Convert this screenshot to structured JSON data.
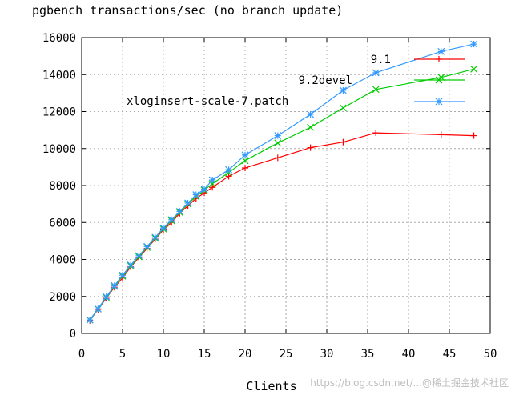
{
  "chart_data": {
    "type": "line",
    "title": "pgbench transactions/sec (no branch update)",
    "xlabel": "Clients",
    "ylabel": "",
    "xlim": [
      0,
      50
    ],
    "ylim": [
      0,
      16000
    ],
    "xticks": [
      0,
      5,
      10,
      15,
      20,
      25,
      30,
      35,
      40,
      45,
      50
    ],
    "yticks": [
      0,
      2000,
      4000,
      6000,
      8000,
      10000,
      12000,
      14000,
      16000
    ],
    "grid": true,
    "legend_position": "top-right",
    "annotation": "xloginsert-scale-7.patch",
    "series": [
      {
        "name": "9.1",
        "color": "#ff0000",
        "marker": "plus",
        "x": [
          1,
          2,
          3,
          4,
          5,
          6,
          7,
          8,
          9,
          10,
          11,
          12,
          13,
          14,
          15,
          16,
          18,
          20,
          24,
          28,
          32,
          36,
          44,
          48
        ],
        "y": [
          700,
          1300,
          1900,
          2500,
          3000,
          3600,
          4100,
          4600,
          5100,
          5600,
          6000,
          6500,
          6900,
          7300,
          7600,
          7900,
          8500,
          8950,
          9500,
          10050,
          10350,
          10850,
          10750,
          10700
        ]
      },
      {
        "name": "9.2devel",
        "color": "#00cc00",
        "marker": "cross",
        "x": [
          1,
          2,
          3,
          4,
          5,
          6,
          7,
          8,
          9,
          10,
          11,
          12,
          13,
          14,
          15,
          16,
          18,
          20,
          24,
          28,
          32,
          36,
          44,
          48
        ],
        "y": [
          720,
          1320,
          1950,
          2550,
          3100,
          3650,
          4150,
          4650,
          5150,
          5650,
          6100,
          6550,
          7000,
          7400,
          7750,
          8100,
          8700,
          9350,
          10300,
          11150,
          12200,
          13200,
          13850,
          14300
        ]
      },
      {
        "name": "",
        "color": "#3399ff",
        "marker": "star",
        "x": [
          1,
          2,
          3,
          4,
          5,
          6,
          7,
          8,
          9,
          10,
          11,
          12,
          13,
          14,
          15,
          16,
          18,
          20,
          24,
          28,
          32,
          36,
          44,
          48
        ],
        "y": [
          730,
          1330,
          1980,
          2580,
          3150,
          3700,
          4200,
          4700,
          5200,
          5700,
          6150,
          6600,
          7050,
          7500,
          7800,
          8300,
          8850,
          9650,
          10700,
          11850,
          13150,
          14100,
          15250,
          15650
        ]
      }
    ]
  },
  "watermark": "https://blog.csdn.net/...@稀土掘金技术社区"
}
